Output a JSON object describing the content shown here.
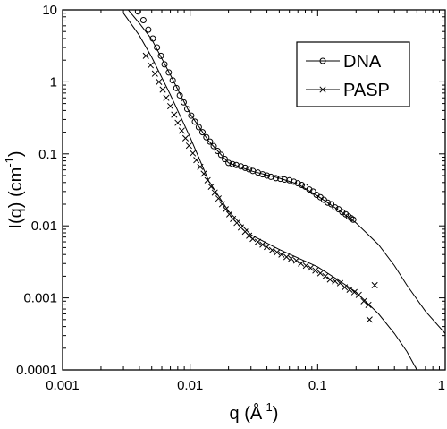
{
  "chart_data": {
    "type": "scatter",
    "x_scale": "log",
    "y_scale": "log",
    "xlim": [
      0.001,
      1
    ],
    "ylim": [
      0.0001,
      10
    ],
    "grid": false,
    "legend_position": "top-right",
    "xlabel": {
      "main": "q  (Å",
      "sup": "-1",
      "close": ")"
    },
    "ylabel": {
      "main": "I(q)  (cm",
      "sup": "-1",
      "close": ")"
    },
    "x_ticks": [
      {
        "value": 0.001,
        "label": "0.001"
      },
      {
        "value": 0.01,
        "label": "0.01"
      },
      {
        "value": 0.1,
        "label": "0.1"
      },
      {
        "value": 1,
        "label": "1"
      }
    ],
    "y_ticks": [
      {
        "value": 10,
        "label": "10"
      },
      {
        "value": 1,
        "label": "1"
      },
      {
        "value": 0.1,
        "label": "0.1"
      },
      {
        "value": 0.01,
        "label": "0.01"
      },
      {
        "value": 0.001,
        "label": "0.001"
      },
      {
        "value": 0.0001,
        "label": "0.0001"
      }
    ],
    "series": [
      {
        "name": "DNA",
        "marker": "circle",
        "points": [
          [
            0.0039,
            9.5
          ],
          [
            0.0043,
            7.2
          ],
          [
            0.0047,
            5.3
          ],
          [
            0.0051,
            4.0
          ],
          [
            0.0055,
            3.0
          ],
          [
            0.0059,
            2.3
          ],
          [
            0.0063,
            1.75
          ],
          [
            0.0068,
            1.35
          ],
          [
            0.0073,
            1.05
          ],
          [
            0.0078,
            0.82
          ],
          [
            0.0083,
            0.65
          ],
          [
            0.0089,
            0.52
          ],
          [
            0.0095,
            0.42
          ],
          [
            0.0102,
            0.34
          ],
          [
            0.0109,
            0.28
          ],
          [
            0.0117,
            0.235
          ],
          [
            0.0125,
            0.2
          ],
          [
            0.0134,
            0.17
          ],
          [
            0.0143,
            0.148
          ],
          [
            0.0153,
            0.128
          ],
          [
            0.0164,
            0.11
          ],
          [
            0.0175,
            0.097
          ],
          [
            0.0187,
            0.085
          ],
          [
            0.02,
            0.075
          ],
          [
            0.0215,
            0.072
          ],
          [
            0.023,
            0.07
          ],
          [
            0.025,
            0.067
          ],
          [
            0.027,
            0.064
          ],
          [
            0.029,
            0.061
          ],
          [
            0.031,
            0.058
          ],
          [
            0.034,
            0.055
          ],
          [
            0.037,
            0.052
          ],
          [
            0.04,
            0.05
          ],
          [
            0.043,
            0.048
          ],
          [
            0.047,
            0.046
          ],
          [
            0.051,
            0.045
          ],
          [
            0.055,
            0.044
          ],
          [
            0.06,
            0.043
          ],
          [
            0.065,
            0.041
          ],
          [
            0.07,
            0.039
          ],
          [
            0.075,
            0.037
          ],
          [
            0.08,
            0.035
          ],
          [
            0.086,
            0.032
          ],
          [
            0.092,
            0.03
          ],
          [
            0.098,
            0.027
          ],
          [
            0.105,
            0.025
          ],
          [
            0.112,
            0.023
          ],
          [
            0.12,
            0.021
          ],
          [
            0.128,
            0.02
          ],
          [
            0.137,
            0.018
          ],
          [
            0.146,
            0.017
          ],
          [
            0.156,
            0.0155
          ],
          [
            0.166,
            0.0145
          ],
          [
            0.175,
            0.0135
          ],
          [
            0.183,
            0.0128
          ],
          [
            0.19,
            0.0122
          ]
        ],
        "fit_curve": [
          [
            0.003,
            12
          ],
          [
            0.004,
            6.5
          ],
          [
            0.005,
            3.9
          ],
          [
            0.007,
            1.25
          ],
          [
            0.01,
            0.36
          ],
          [
            0.014,
            0.15
          ],
          [
            0.02,
            0.075
          ],
          [
            0.03,
            0.058
          ],
          [
            0.05,
            0.046
          ],
          [
            0.07,
            0.038
          ],
          [
            0.1,
            0.026
          ],
          [
            0.15,
            0.016
          ],
          [
            0.2,
            0.011
          ],
          [
            0.3,
            0.0055
          ],
          [
            0.4,
            0.0028
          ],
          [
            0.5,
            0.0015
          ],
          [
            0.7,
            0.00065
          ],
          [
            1.0,
            0.00032
          ]
        ]
      },
      {
        "name": "PASP",
        "marker": "cross",
        "points": [
          [
            0.0045,
            2.3
          ],
          [
            0.0049,
            1.7
          ],
          [
            0.0053,
            1.3
          ],
          [
            0.0057,
            1.0
          ],
          [
            0.0061,
            0.78
          ],
          [
            0.0065,
            0.6
          ],
          [
            0.007,
            0.46
          ],
          [
            0.0075,
            0.35
          ],
          [
            0.008,
            0.27
          ],
          [
            0.0086,
            0.21
          ],
          [
            0.0092,
            0.165
          ],
          [
            0.0098,
            0.13
          ],
          [
            0.0105,
            0.102
          ],
          [
            0.0112,
            0.082
          ],
          [
            0.012,
            0.066
          ],
          [
            0.0128,
            0.053
          ],
          [
            0.0137,
            0.043
          ],
          [
            0.0146,
            0.035
          ],
          [
            0.0156,
            0.029
          ],
          [
            0.0167,
            0.024
          ],
          [
            0.0178,
            0.02
          ],
          [
            0.019,
            0.017
          ],
          [
            0.0203,
            0.0145
          ],
          [
            0.0217,
            0.0125
          ],
          [
            0.0232,
            0.011
          ],
          [
            0.025,
            0.0095
          ],
          [
            0.027,
            0.0083
          ],
          [
            0.029,
            0.0073
          ],
          [
            0.031,
            0.0066
          ],
          [
            0.034,
            0.006
          ],
          [
            0.037,
            0.0055
          ],
          [
            0.04,
            0.0051
          ],
          [
            0.044,
            0.0046
          ],
          [
            0.048,
            0.0043
          ],
          [
            0.052,
            0.004
          ],
          [
            0.057,
            0.0037
          ],
          [
            0.062,
            0.0035
          ],
          [
            0.068,
            0.0033
          ],
          [
            0.074,
            0.003
          ],
          [
            0.081,
            0.0028
          ],
          [
            0.088,
            0.0026
          ],
          [
            0.096,
            0.0024
          ],
          [
            0.105,
            0.0022
          ],
          [
            0.115,
            0.002
          ],
          [
            0.125,
            0.0018
          ],
          [
            0.137,
            0.0017
          ],
          [
            0.15,
            0.0016
          ],
          [
            0.163,
            0.0014
          ],
          [
            0.178,
            0.0013
          ],
          [
            0.194,
            0.0012
          ],
          [
            0.21,
            0.0011
          ],
          [
            0.23,
            0.0009
          ],
          [
            0.25,
            0.0008
          ],
          [
            0.255,
            0.0005
          ],
          [
            0.28,
            0.0015
          ]
        ],
        "fit_curve": [
          [
            0.003,
            9.0
          ],
          [
            0.004,
            4.4
          ],
          [
            0.005,
            2.2
          ],
          [
            0.007,
            0.66
          ],
          [
            0.01,
            0.17
          ],
          [
            0.014,
            0.042
          ],
          [
            0.02,
            0.016
          ],
          [
            0.03,
            0.0075
          ],
          [
            0.05,
            0.0047
          ],
          [
            0.1,
            0.0027
          ],
          [
            0.15,
            0.0017
          ],
          [
            0.2,
            0.0012
          ],
          [
            0.3,
            0.0006
          ],
          [
            0.4,
            0.00032
          ],
          [
            0.5,
            0.00018
          ],
          [
            0.6,
            0.0001
          ]
        ]
      }
    ]
  }
}
